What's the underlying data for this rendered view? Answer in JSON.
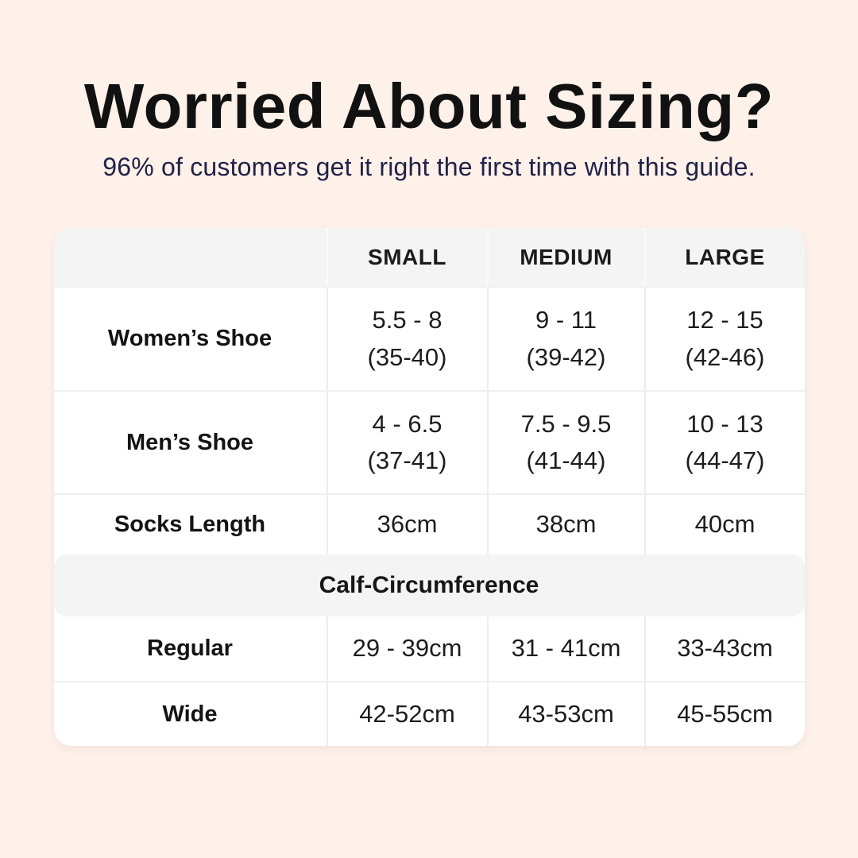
{
  "header": {
    "title": "Worried About Sizing?",
    "subtitle": "96% of customers get it right the first time with this guide."
  },
  "table": {
    "columns": [
      "",
      "SMALL",
      "MEDIUM",
      "LARGE"
    ],
    "shoe_rows": [
      {
        "label": "Women’s Shoe",
        "cells": [
          {
            "us": "5.5 - 8",
            "eu": "(35-40)"
          },
          {
            "us": "9 - 11",
            "eu": "(39-42)"
          },
          {
            "us": "12 - 15",
            "eu": "(42-46)"
          }
        ]
      },
      {
        "label": "Men’s Shoe",
        "cells": [
          {
            "us": "4 - 6.5",
            "eu": "(37-41)"
          },
          {
            "us": "7.5 - 9.5",
            "eu": "(41-44)"
          },
          {
            "us": "10 - 13",
            "eu": "(44-47)"
          }
        ]
      }
    ],
    "socks_row": {
      "label": "Socks Length",
      "cells": [
        "36cm",
        "38cm",
        "40cm"
      ]
    },
    "section_header": "Calf-Circumference",
    "calf_rows": [
      {
        "label": "Regular",
        "cells": [
          "29 - 39cm",
          "31 - 41cm",
          "33-43cm"
        ]
      },
      {
        "label": "Wide",
        "cells": [
          "42-52cm",
          "43-53cm",
          "45-55cm"
        ]
      }
    ]
  },
  "chart_data": {
    "type": "table",
    "title": "Worried About Sizing?",
    "subtitle": "96% of customers get it right the first time with this guide.",
    "columns": [
      "",
      "SMALL",
      "MEDIUM",
      "LARGE"
    ],
    "rows": [
      [
        "Women’s Shoe",
        "5.5 - 8 (35-40)",
        "9 - 11 (39-42)",
        "12 - 15 (42-46)"
      ],
      [
        "Men’s Shoe",
        "4 - 6.5 (37-41)",
        "7.5 - 9.5 (41-44)",
        "10 - 13 (44-47)"
      ],
      [
        "Socks Length",
        "36cm",
        "38cm",
        "40cm"
      ],
      [
        "Calf-Circumference",
        "",
        "",
        ""
      ],
      [
        "Regular",
        "29 - 39cm",
        "31 - 41cm",
        "33-43cm"
      ],
      [
        "Wide",
        "42-52cm",
        "43-53cm",
        "45-55cm"
      ]
    ]
  },
  "colors": {
    "background": "#fdf1e9",
    "card": "#ffffff",
    "band": "#f5f4f4",
    "divider": "#ededed",
    "title_text": "#111111",
    "subtitle_text": "#222248"
  }
}
